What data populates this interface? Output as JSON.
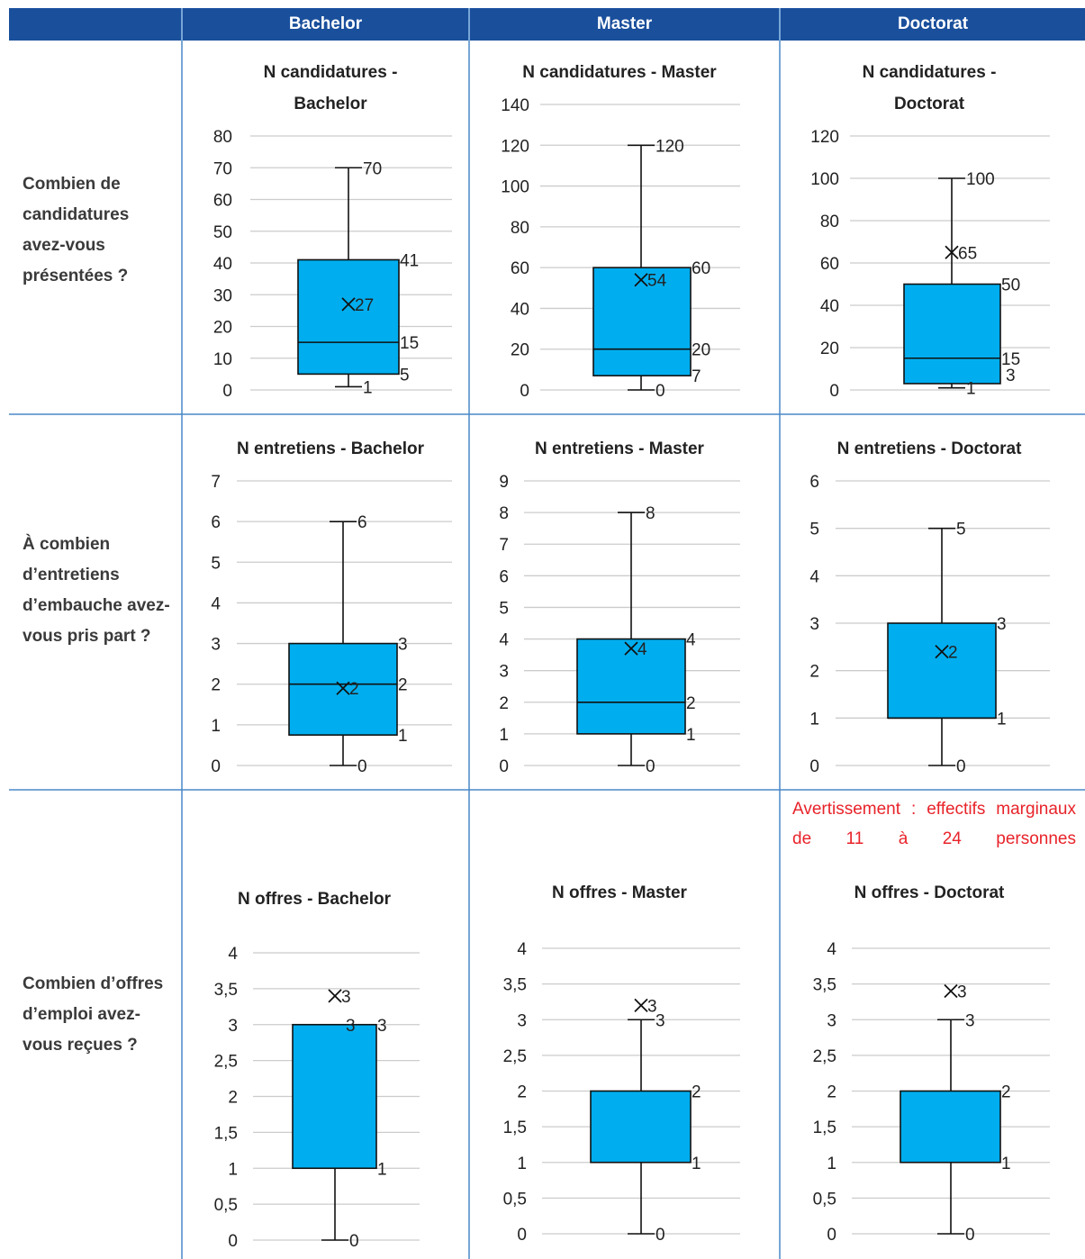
{
  "headers": [
    "Bachelor",
    "Master",
    "Doctorat"
  ],
  "rows": [
    "Combien de candidatures avez-vous présentées ?",
    "À combien d’entretiens d’embauche avez-vous pris part ?",
    "Combien d’offres d’emploi avez-vous reçues ?"
  ],
  "warning": "Avertissement : effectifs marginaux de 11 à 24 personnes",
  "colors": {
    "header": "#1a4f9c",
    "box": "#00aeef",
    "grid": "#cccccc",
    "border": "#4a88c8",
    "warning": "#e8232a"
  },
  "chart_data": [
    {
      "type": "box",
      "title": [
        "N candidatures -",
        "Bachelor"
      ],
      "ylim": [
        0,
        80
      ],
      "yticks": [
        "0",
        "10",
        "20",
        "30",
        "40",
        "50",
        "60",
        "70",
        "80"
      ],
      "min": 1,
      "q1": 5,
      "median": 15,
      "q3": 41,
      "max": 70,
      "mean": 27,
      "labels": [
        {
          "v": 70,
          "t": "70",
          "side": "wtop"
        },
        {
          "v": 41,
          "t": "41",
          "side": "q3"
        },
        {
          "v": 27,
          "t": "27",
          "side": "mean"
        },
        {
          "v": 15,
          "t": "15",
          "side": "med"
        },
        {
          "v": 5,
          "t": "5",
          "side": "q1"
        },
        {
          "v": 1,
          "t": "1",
          "side": "wbot"
        }
      ]
    },
    {
      "type": "box",
      "title": [
        "N candidatures - Master"
      ],
      "ylim": [
        0,
        140
      ],
      "yticks": [
        "0",
        "20",
        "40",
        "60",
        "80",
        "100",
        "120",
        "140"
      ],
      "min": 0,
      "q1": 7,
      "median": 20,
      "q3": 60,
      "max": 120,
      "mean": 54,
      "labels": [
        {
          "v": 120,
          "t": "120",
          "side": "wtop"
        },
        {
          "v": 60,
          "t": "60",
          "side": "q3"
        },
        {
          "v": 54,
          "t": "54",
          "side": "mean"
        },
        {
          "v": 20,
          "t": "20",
          "side": "med"
        },
        {
          "v": 7,
          "t": "7",
          "side": "q1"
        },
        {
          "v": 0,
          "t": "0",
          "side": "wbot"
        }
      ]
    },
    {
      "type": "box",
      "title": [
        "N candidatures -",
        "Doctorat"
      ],
      "ylim": [
        0,
        120
      ],
      "yticks": [
        "0",
        "20",
        "40",
        "60",
        "80",
        "100",
        "120"
      ],
      "min": 1,
      "q1": 3,
      "median": 15,
      "q3": 50,
      "max": 100,
      "mean": 65,
      "labels": [
        {
          "v": 100,
          "t": "100",
          "side": "wtop"
        },
        {
          "v": 65,
          "t": "65",
          "side": "mean"
        },
        {
          "v": 50,
          "t": "50",
          "side": "q3"
        },
        {
          "v": 15,
          "t": "15",
          "side": "med"
        },
        {
          "v": 3,
          "t": "3",
          "side": "q1"
        },
        {
          "v": 1,
          "t": "1",
          "side": "wbot"
        }
      ]
    },
    {
      "type": "box",
      "title": [
        "N entretiens - Bachelor"
      ],
      "ylim": [
        0,
        7
      ],
      "yticks": [
        "0",
        "1",
        "2",
        "3",
        "4",
        "5",
        "6",
        "7"
      ],
      "min": 0,
      "q1": 0.75,
      "median": 2,
      "q3": 3,
      "max": 6,
      "mean": 1.9,
      "labels": [
        {
          "v": 6,
          "t": "6",
          "side": "wtop"
        },
        {
          "v": 3,
          "t": "3",
          "side": "q3"
        },
        {
          "v": 2,
          "t": "2",
          "side": "med"
        },
        {
          "v": 1.9,
          "t": "2",
          "side": "mean"
        },
        {
          "v": 0.75,
          "t": "1",
          "side": "q1"
        },
        {
          "v": 0,
          "t": "0",
          "side": "wbot"
        }
      ]
    },
    {
      "type": "box",
      "title": [
        "N entretiens - Master"
      ],
      "ylim": [
        0,
        9
      ],
      "yticks": [
        "0",
        "1",
        "2",
        "3",
        "4",
        "5",
        "6",
        "7",
        "8",
        "9"
      ],
      "min": 0,
      "q1": 1,
      "median": 2,
      "q3": 4,
      "max": 8,
      "mean": 3.7,
      "labels": [
        {
          "v": 8,
          "t": "8",
          "side": "wtop"
        },
        {
          "v": 4,
          "t": "4",
          "side": "q3"
        },
        {
          "v": 3.7,
          "t": "4",
          "side": "mean"
        },
        {
          "v": 2,
          "t": "2",
          "side": "med"
        },
        {
          "v": 1,
          "t": "1",
          "side": "q1"
        },
        {
          "v": 0,
          "t": "0",
          "side": "wbot"
        }
      ]
    },
    {
      "type": "box",
      "title": [
        "N entretiens - Doctorat"
      ],
      "ylim": [
        0,
        6
      ],
      "yticks": [
        "0",
        "1",
        "2",
        "3",
        "4",
        "5",
        "6"
      ],
      "min": 0,
      "q1": 1,
      "median": 1,
      "q3": 3,
      "max": 5,
      "mean": 2.4,
      "labels": [
        {
          "v": 5,
          "t": "5",
          "side": "wtop"
        },
        {
          "v": 3,
          "t": "3",
          "side": "q3"
        },
        {
          "v": 2.4,
          "t": "2",
          "side": "mean"
        },
        {
          "v": 1,
          "t": "1",
          "side": "q1"
        },
        {
          "v": 0,
          "t": "0",
          "side": "wbot"
        }
      ]
    },
    {
      "type": "box",
      "title": [
        "N offres - Bachelor"
      ],
      "ylim": [
        0,
        4
      ],
      "yticks": [
        "0",
        "0,5",
        "1",
        "1,5",
        "2",
        "2,5",
        "3",
        "3,5",
        "4"
      ],
      "min": 0,
      "q1": 1,
      "median": 3,
      "q3": 3,
      "max": 3,
      "mean": 3.4,
      "labels": [
        {
          "v": 3.4,
          "t": "3",
          "side": "mean"
        },
        {
          "v": 3,
          "t": "3",
          "side": "wtopIn"
        },
        {
          "v": 3,
          "t": "3",
          "side": "q3"
        },
        {
          "v": 1,
          "t": "1",
          "side": "q1"
        },
        {
          "v": 0,
          "t": "0",
          "side": "wbot"
        }
      ]
    },
    {
      "type": "box",
      "title": [
        "N offres - Master"
      ],
      "ylim": [
        0,
        4
      ],
      "yticks": [
        "0",
        "0,5",
        "1",
        "1,5",
        "2",
        "2,5",
        "3",
        "3,5",
        "4"
      ],
      "min": 0,
      "q1": 1,
      "median": 1,
      "q3": 2,
      "max": 3,
      "mean": 3.2,
      "labels": [
        {
          "v": 3.2,
          "t": "3",
          "side": "mean"
        },
        {
          "v": 3,
          "t": "3",
          "side": "wtop"
        },
        {
          "v": 2,
          "t": "2",
          "side": "q3"
        },
        {
          "v": 1,
          "t": "1",
          "side": "q1"
        },
        {
          "v": 0,
          "t": "0",
          "side": "wbot"
        }
      ]
    },
    {
      "type": "box",
      "title": [
        "N offres - Doctorat"
      ],
      "ylim": [
        0,
        4
      ],
      "yticks": [
        "0",
        "0,5",
        "1",
        "1,5",
        "2",
        "2,5",
        "3",
        "3,5",
        "4"
      ],
      "min": 0,
      "q1": 1,
      "median": 1,
      "q3": 2,
      "max": 3,
      "mean": 3.4,
      "labels": [
        {
          "v": 3.4,
          "t": "3",
          "side": "mean"
        },
        {
          "v": 3,
          "t": "3",
          "side": "wtop"
        },
        {
          "v": 2,
          "t": "2",
          "side": "q3"
        },
        {
          "v": 1,
          "t": "1",
          "side": "q1"
        },
        {
          "v": 0,
          "t": "0",
          "side": "wbot"
        }
      ]
    }
  ]
}
